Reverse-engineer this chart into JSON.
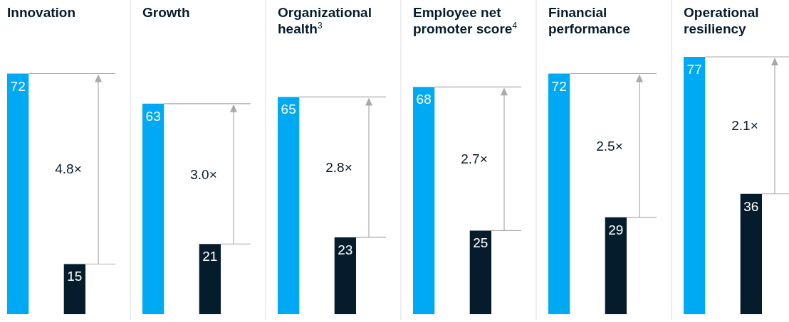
{
  "chart_data": [
    {
      "type": "bar",
      "title": "Innovation",
      "categories": [
        null,
        null
      ],
      "values": [
        72,
        15
      ],
      "colors": [
        "#00a9f4",
        "#051c2c"
      ],
      "data_labels": true,
      "annotations": [
        "4.8×"
      ]
    },
    {
      "type": "bar",
      "title": "Growth",
      "categories": [
        null,
        null
      ],
      "values": [
        63,
        21
      ],
      "colors": [
        "#00a9f4",
        "#051c2c"
      ],
      "data_labels": true,
      "annotations": [
        "3.0×"
      ]
    },
    {
      "type": "bar",
      "title": "Organizational health$^{3}$",
      "categories": [
        null,
        null
      ],
      "values": [
        65,
        23
      ],
      "colors": [
        "#00a9f4",
        "#051c2c"
      ],
      "data_labels": true,
      "annotations": [
        "2.8×"
      ]
    },
    {
      "type": "bar",
      "title": "Employee net promoter score$^{4}$",
      "categories": [
        null,
        null
      ],
      "values": [
        68,
        25
      ],
      "colors": [
        "#00a9f4",
        "#051c2c"
      ],
      "data_labels": true,
      "annotations": [
        "2.7×"
      ]
    },
    {
      "type": "bar",
      "title": "Financial performance",
      "categories": [
        null,
        null
      ],
      "values": [
        72,
        29
      ],
      "colors": [
        "#00a9f4",
        "#051c2c"
      ],
      "data_labels": true,
      "annotations": [
        "2.5×"
      ]
    },
    {
      "type": "bar",
      "title": "Operational resiliency",
      "categories": [
        null,
        null
      ],
      "values": [
        77,
        36
      ],
      "colors": [
        "#00a9f4",
        "#051c2c"
      ],
      "data_labels": true,
      "annotations": [
        "2.1×"
      ]
    }
  ]
}
